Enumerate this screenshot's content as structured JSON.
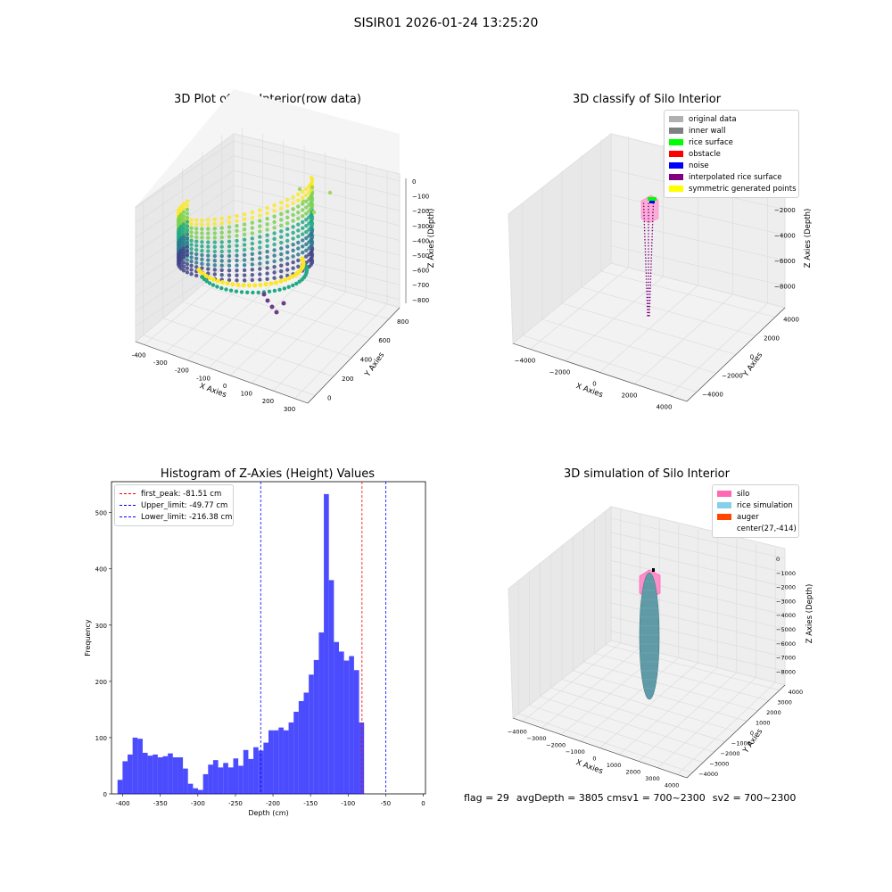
{
  "suptitle": "SISIR01 2026-01-24 13:25:20",
  "footer": {
    "flag": "flag = 29",
    "avg": "avgDepth = 3805 cmsv1 = 700~2300",
    "sv2": "sv2 = 700~2300"
  },
  "colors": {
    "original_data": "#b0b0b0",
    "inner_wall": "#808080",
    "rice_surface": "#00ff00",
    "obstacle": "#ff0000",
    "noise": "#0000ff",
    "interpolated_rice_surface": "#800080",
    "symmetric_generated_points": "#ffff00",
    "silo": "#ff69b4",
    "rice_simulation": "#87ceeb",
    "auger": "#ff4500",
    "hist_bar": "#0000ff"
  },
  "chart_data": [
    {
      "type": "scatter3d",
      "title": "3D Plot of Silo Interior(row data)",
      "xlabel": "X Axies",
      "ylabel": "Y Axies",
      "zlabel": "Z Axies (Depth)",
      "xticks": [
        "-400",
        "-300",
        "-200",
        "-100",
        "0",
        "100",
        "200",
        "300"
      ],
      "yticks": [
        "0",
        "200",
        "400",
        "600",
        "800"
      ],
      "zticks": [
        "0",
        "−100",
        "−200",
        "−300",
        "−400",
        "−500",
        "−600",
        "−700",
        "−800"
      ],
      "colormap": "viridis"
    },
    {
      "type": "scatter3d",
      "title": "3D classify of Silo Interior",
      "xlabel": "X Axies",
      "ylabel": "Y Axies",
      "zlabel": "Z Axies (Depth)",
      "xticks": [
        "−4000",
        "−2000",
        "0",
        "2000",
        "4000"
      ],
      "yticks": [
        "−4000",
        "−2000",
        "0",
        "2000",
        "4000"
      ],
      "zticks": [
        "−2000",
        "−4000",
        "−6000",
        "−8000"
      ],
      "legend": [
        {
          "label": "original data",
          "color": "#b0b0b0"
        },
        {
          "label": "inner wall",
          "color": "#808080"
        },
        {
          "label": "rice surface",
          "color": "#00ff00"
        },
        {
          "label": "obstacle",
          "color": "#ff0000"
        },
        {
          "label": "noise",
          "color": "#0000ff"
        },
        {
          "label": "interpolated rice surface",
          "color": "#800080"
        },
        {
          "label": "symmetric generated points",
          "color": "#ffff00"
        }
      ],
      "legend_loc": "upper right"
    },
    {
      "type": "bar",
      "title": "Histogram of Z-Axies (Height) Values",
      "xlabel": "Depth (cm)",
      "ylabel": "Frequency",
      "xlim": [
        -415,
        3
      ],
      "ylim": [
        0,
        555
      ],
      "xticks": [
        -400,
        -350,
        -300,
        -250,
        -200,
        -150,
        -100,
        -50,
        0
      ],
      "yticks": [
        0,
        100,
        200,
        300,
        400,
        500
      ],
      "bin_start": -407,
      "bin_width": 6.7,
      "values": [
        25,
        58,
        70,
        100,
        98,
        73,
        68,
        70,
        65,
        67,
        72,
        65,
        65,
        45,
        18,
        10,
        7,
        35,
        52,
        60,
        47,
        55,
        47,
        63,
        50,
        78,
        62,
        83,
        77,
        91,
        113,
        113,
        118,
        113,
        127,
        146,
        165,
        180,
        212,
        238,
        287,
        533,
        380,
        270,
        253,
        237,
        245,
        220,
        127
      ],
      "vlines": [
        {
          "label": "first_peak: -81.51 cm",
          "x": -81.51,
          "color": "#ff0000"
        },
        {
          "label": "Upper_limit: -49.77 cm",
          "x": -49.77,
          "color": "#0000ff"
        },
        {
          "label": "Lower_limit: -216.38 cm",
          "x": -216.38,
          "color": "#0000ff"
        }
      ],
      "legend_loc": "upper left"
    },
    {
      "type": "surface3d",
      "title": "3D simulation of Silo Interior",
      "xlabel": "X Axies",
      "ylabel": "Y Axies",
      "zlabel": "Z Axies (Depth)",
      "xticks": [
        "−4000",
        "−3000",
        "−2000",
        "−1000",
        "0",
        "1000",
        "2000",
        "3000",
        "4000"
      ],
      "yticks": [
        "−4000",
        "−3000",
        "−2000",
        "−1000",
        "0",
        "1000",
        "2000",
        "3000",
        "4000"
      ],
      "zticks": [
        "0",
        "−1000",
        "−2000",
        "−3000",
        "−4000",
        "−5000",
        "−6000",
        "−7000",
        "−8000"
      ],
      "legend": [
        {
          "label": "silo",
          "color": "#ff69b4"
        },
        {
          "label": "rice simulation",
          "color": "#87ceeb"
        },
        {
          "label": "auger",
          "color": "#ff4500"
        },
        {
          "label": "center(27,-414)",
          "color": ""
        }
      ],
      "legend_loc": "upper right"
    }
  ]
}
